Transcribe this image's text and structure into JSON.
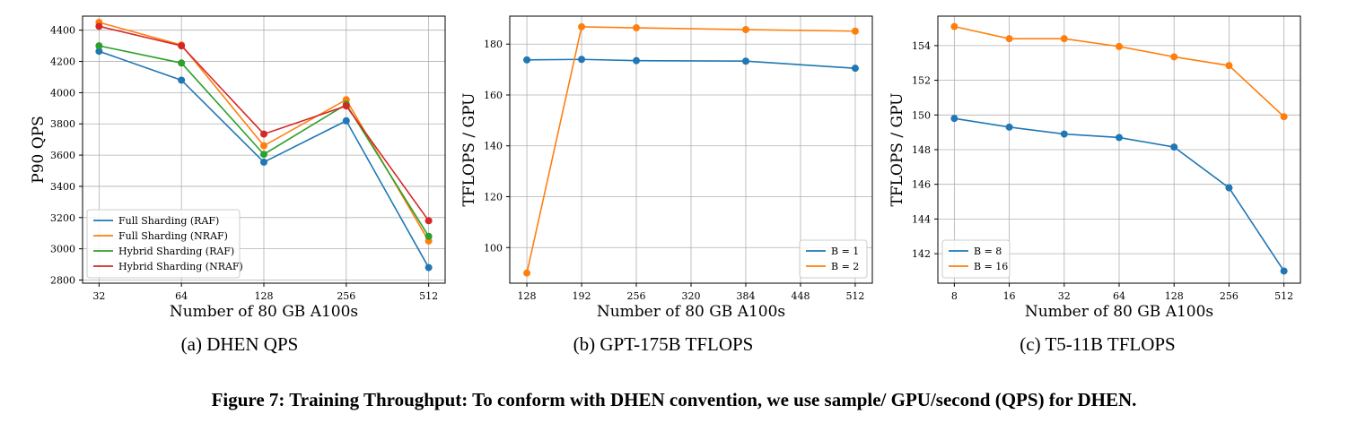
{
  "caption": "Figure 7: Training Throughput: To conform with DHEN convention, we use sample/ GPU/second (QPS) for DHEN.",
  "chart_data": [
    {
      "type": "line",
      "subcaption": "(a) DHEN QPS",
      "xlabel": "Number of 80 GB A100s",
      "ylabel": "P90 QPS",
      "x": [
        32,
        64,
        128,
        256,
        512
      ],
      "x_scale": "log2",
      "xticks": [
        "32",
        "64",
        "128",
        "256",
        "512"
      ],
      "yticks": [
        2800,
        3000,
        3200,
        3400,
        3600,
        3800,
        4000,
        4200,
        4400
      ],
      "ylim": [
        2780,
        4490
      ],
      "grid": true,
      "legend_position": "lower-left",
      "series": [
        {
          "name": "Full Sharding (RAF)",
          "color": "#1f77b4",
          "values": [
            4265,
            4080,
            3555,
            3820,
            2880
          ]
        },
        {
          "name": "Full Sharding (NRAF)",
          "color": "#ff7f0e",
          "values": [
            4450,
            4305,
            3660,
            3955,
            3050
          ]
        },
        {
          "name": "Hybrid Sharding (RAF)",
          "color": "#2ca02c",
          "values": [
            4300,
            4190,
            3605,
            3925,
            3080
          ]
        },
        {
          "name": "Hybrid Sharding (NRAF)",
          "color": "#d62728",
          "values": [
            4425,
            4300,
            3735,
            3915,
            3180
          ]
        }
      ]
    },
    {
      "type": "line",
      "subcaption": "(b) GPT-175B TFLOPS",
      "xlabel": "Number of 80 GB A100s",
      "ylabel": "TFLOPS / GPU",
      "x": [
        128,
        192,
        256,
        384,
        512
      ],
      "x_scale": "linear",
      "xticks": [
        "128",
        "192",
        "256",
        "320",
        "384",
        "448",
        "512"
      ],
      "xtick_values": [
        128,
        192,
        256,
        320,
        384,
        448,
        512
      ],
      "xlim": [
        108,
        532
      ],
      "yticks": [
        100,
        120,
        140,
        160,
        180
      ],
      "ylim": [
        86,
        191
      ],
      "grid": true,
      "legend_position": "lower-right",
      "series": [
        {
          "name": "B = 1",
          "color": "#1f77b4",
          "values": [
            173.8,
            174.0,
            173.5,
            173.3,
            170.5
          ]
        },
        {
          "name": "B = 2",
          "color": "#ff7f0e",
          "values": [
            90.0,
            186.8,
            186.4,
            185.7,
            185.1
          ]
        }
      ]
    },
    {
      "type": "line",
      "subcaption": "(c) T5-11B TFLOPS",
      "xlabel": "Number of 80 GB A100s",
      "ylabel": "TFLOPS / GPU",
      "x": [
        8,
        16,
        32,
        64,
        128,
        256,
        512
      ],
      "x_scale": "log2",
      "xticks": [
        "8",
        "16",
        "32",
        "64",
        "128",
        "256",
        "512"
      ],
      "yticks": [
        142,
        144,
        146,
        148,
        150,
        152,
        154
      ],
      "ylim": [
        140.3,
        155.7
      ],
      "grid": true,
      "legend_position": "lower-left",
      "series": [
        {
          "name": "B = 8",
          "color": "#1f77b4",
          "values": [
            149.8,
            149.3,
            148.9,
            148.7,
            148.15,
            145.8,
            141.0
          ]
        },
        {
          "name": "B = 16",
          "color": "#ff7f0e",
          "values": [
            155.1,
            154.4,
            154.4,
            153.95,
            153.35,
            152.85,
            149.9
          ]
        }
      ]
    }
  ]
}
